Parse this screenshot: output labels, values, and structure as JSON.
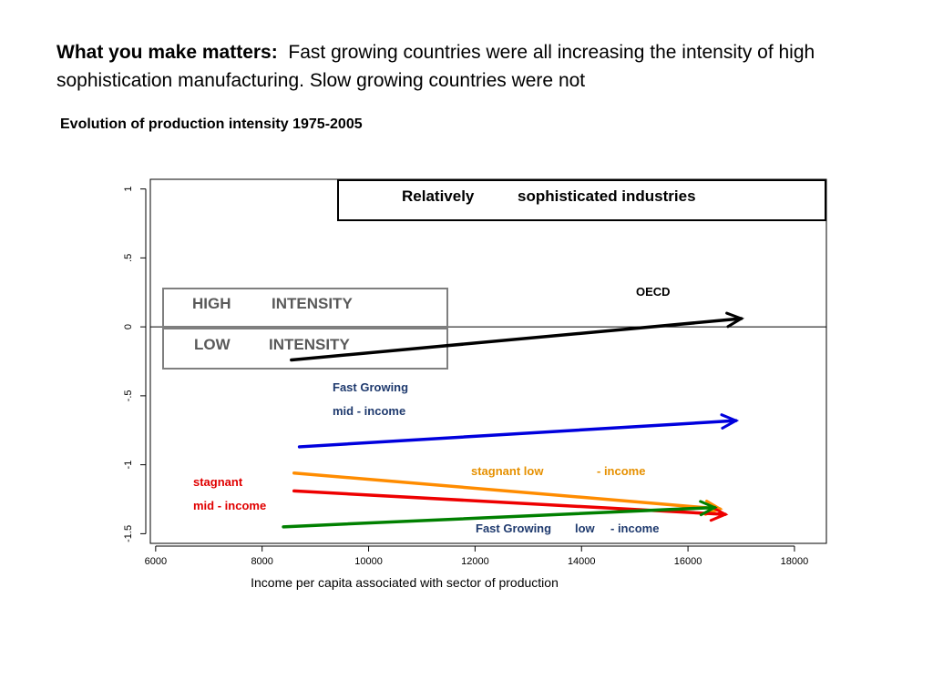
{
  "headline": {
    "bold": "What you make matters:",
    "text": "Fast growing countries were all increasing the intensity of high  sophistication manufacturing. Slow growing countries were not"
  },
  "subtitle": "Evolution of production intensity 1975-2005",
  "colors": {
    "oecd": "#000000",
    "fast_mid": "#0000dd",
    "stagnant_low": "#ff8c00",
    "stagnant_mid": "#ee0000",
    "fast_low": "#008000",
    "label_blue": "#1f3a6e",
    "label_orange": "#e69000",
    "label_red": "#e00000",
    "intensity_text": "#595959",
    "intensity_box": "#7f7f7f"
  },
  "chart_data": {
    "type": "line",
    "title": "",
    "xlabel": "Income per capita associated with sector of production",
    "ylabel": "",
    "xlim": [
      5900,
      18600
    ],
    "ylim": [
      -1.57,
      1.07
    ],
    "x_ticks": [
      6000,
      8000,
      10000,
      12000,
      14000,
      16000,
      18000
    ],
    "x_tick_labels": [
      "6000",
      "8000",
      "10000",
      "12000",
      "14000",
      "16000",
      "18000"
    ],
    "y_ticks": [
      1,
      0.5,
      0,
      -0.5,
      -1,
      -1.5
    ],
    "y_tick_labels": [
      "1",
      ".5",
      "0",
      "-.5",
      "-1",
      "-1.5"
    ],
    "zero_line": 0,
    "box_label": {
      "part1": "Relatively",
      "part2": "sophisticated  industries"
    },
    "intensity_labels": {
      "high": {
        "word1": "HIGH",
        "word2": "INTENSITY"
      },
      "low": {
        "word1": "LOW",
        "word2": "INTENSITY"
      }
    },
    "series": [
      {
        "name": "OECD",
        "label_lines": [
          "OECD"
        ],
        "color_key": "oecd",
        "start": [
          8550,
          -0.24
        ],
        "end": [
          17000,
          0.06
        ]
      },
      {
        "name": "Fast Growing mid - income",
        "label_lines": [
          "Fast Growing",
          "mid    - income"
        ],
        "color_key": "fast_mid",
        "start": [
          8700,
          -0.87
        ],
        "end": [
          16900,
          -0.68
        ]
      },
      {
        "name": "stagnant low - income",
        "label_lines": [
          "stagnant low",
          "- income"
        ],
        "color_key": "stagnant_low",
        "start": [
          8600,
          -1.06
        ],
        "end": [
          16600,
          -1.32
        ]
      },
      {
        "name": "stagnant mid - income",
        "label_lines": [
          "stagnant",
          "mid    - income"
        ],
        "color_key": "stagnant_mid",
        "start": [
          8600,
          -1.19
        ],
        "end": [
          16700,
          -1.36
        ]
      },
      {
        "name": "Fast Growing low - income",
        "label_lines": [
          "Fast Growing",
          "low",
          "- income"
        ],
        "color_key": "fast_low",
        "start": [
          8400,
          -1.45
        ],
        "end": [
          16500,
          -1.31
        ]
      }
    ]
  }
}
